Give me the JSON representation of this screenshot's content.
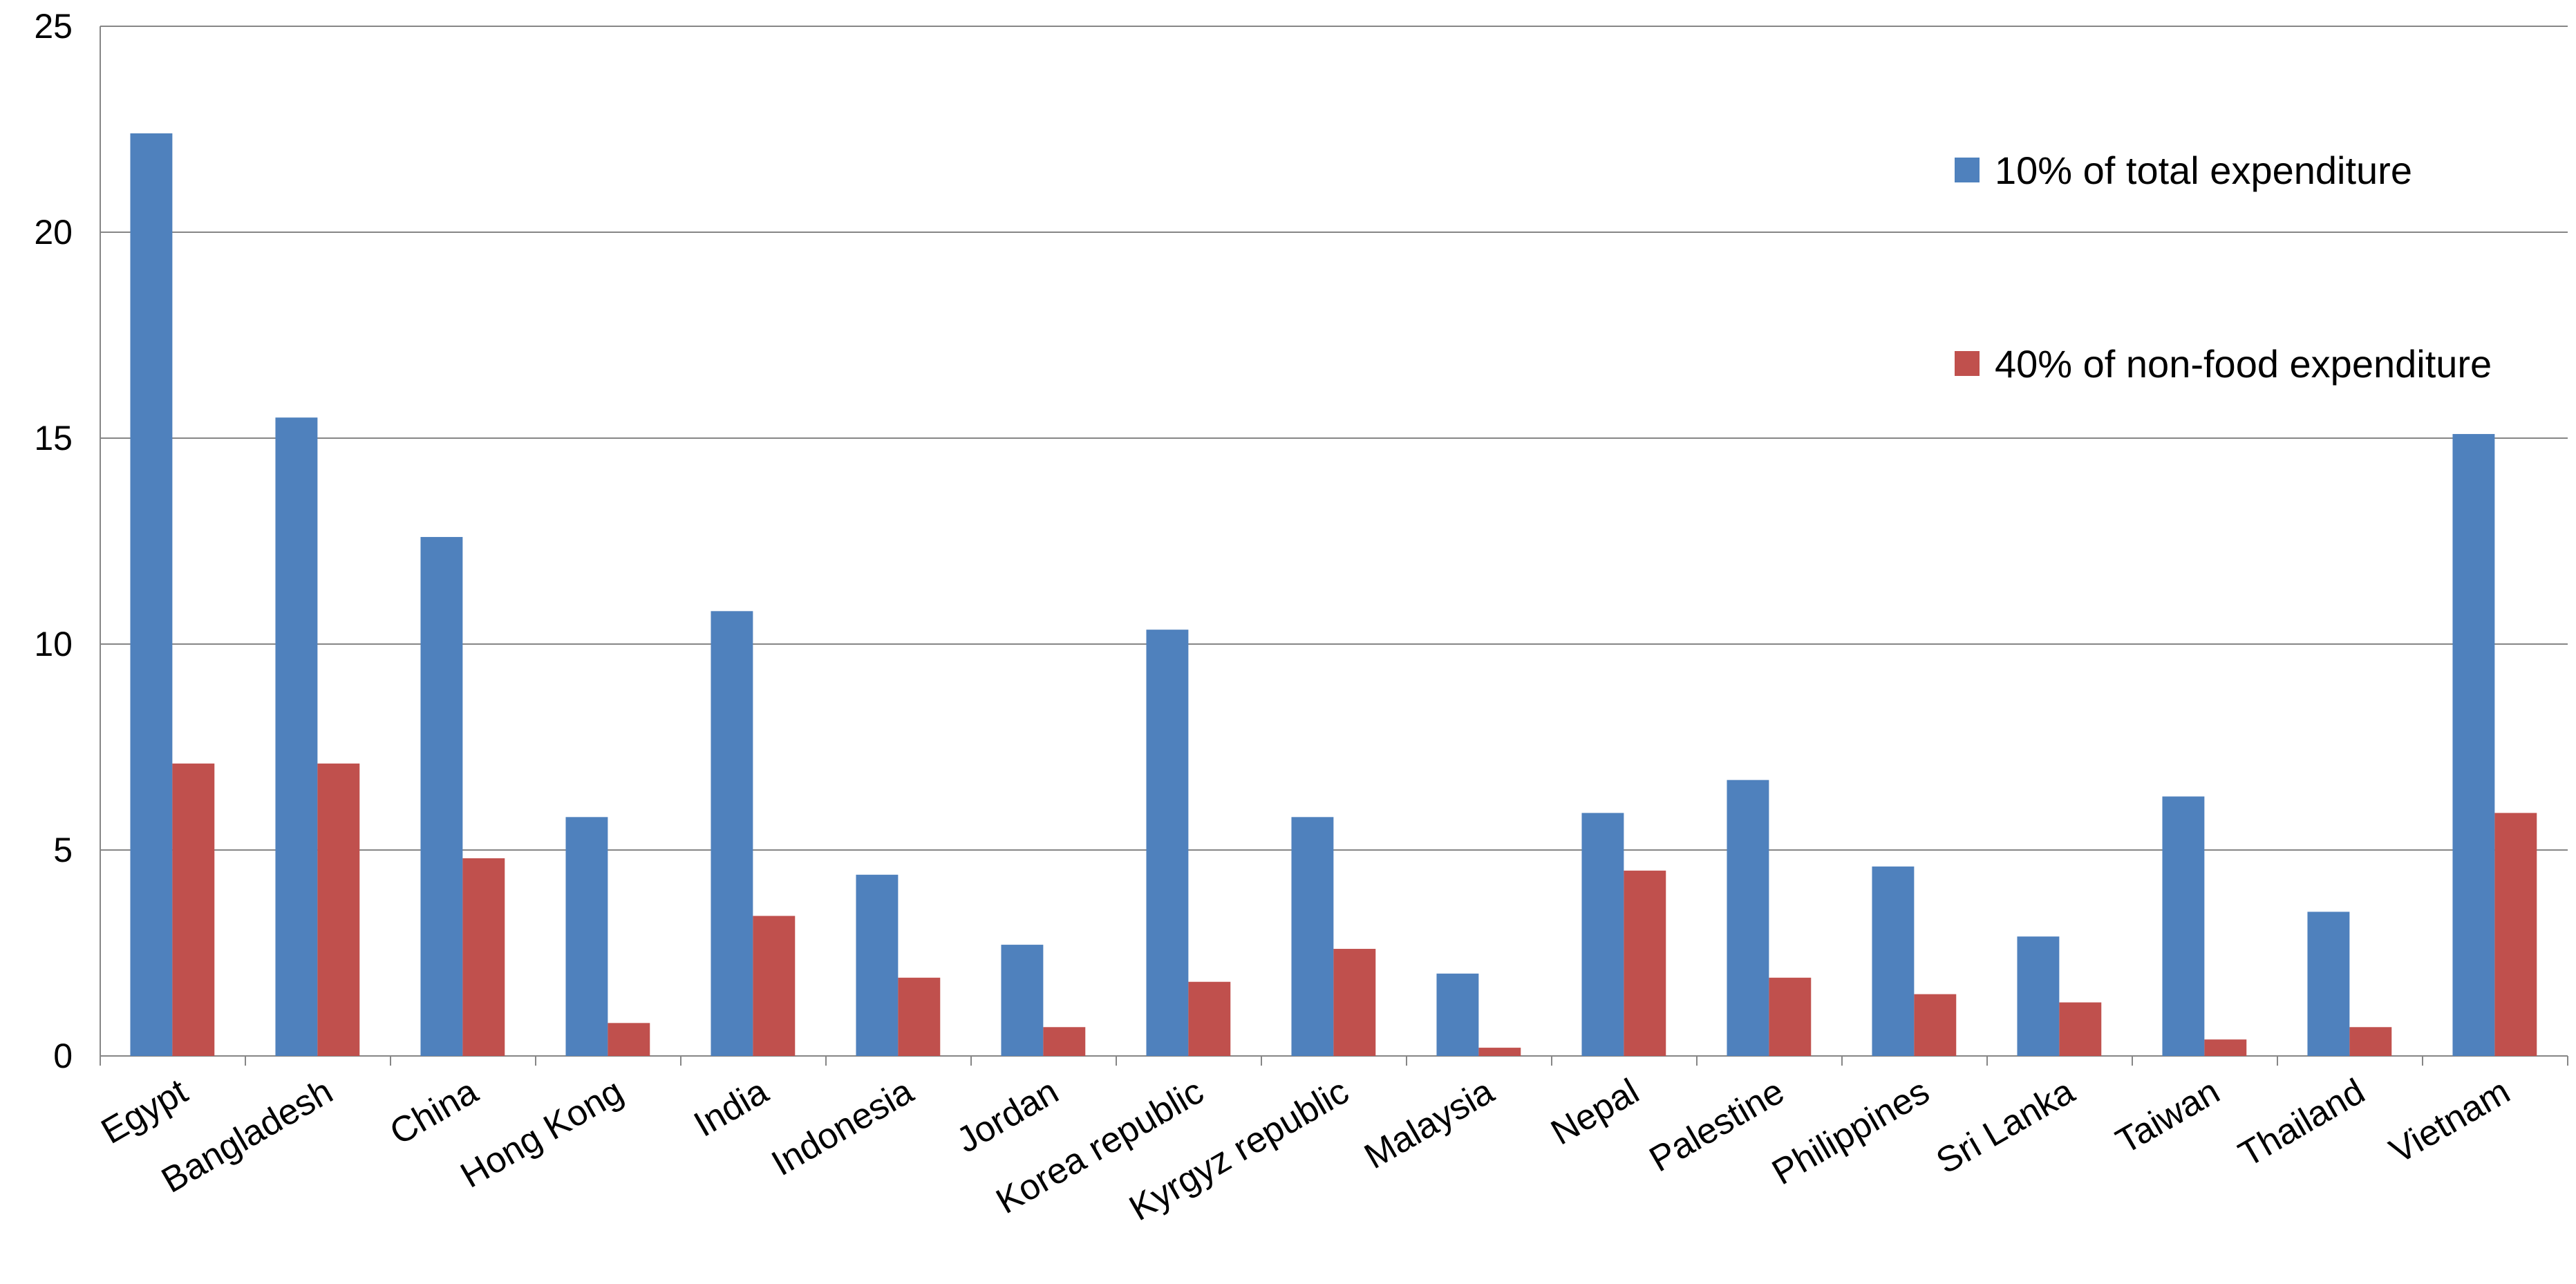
{
  "chart_data": {
    "type": "bar",
    "title": "",
    "xlabel": "",
    "ylabel": "",
    "ylim": [
      0,
      25
    ],
    "yticks": [
      0,
      5,
      10,
      15,
      20,
      25
    ],
    "grid": true,
    "legend_position": "top-right",
    "categories": [
      "Egypt",
      "Bangladesh",
      "China",
      "Hong Kong",
      "India",
      "Indonesia",
      "Jordan",
      "Korea republic",
      "Kyrgyz republic",
      "Malaysia",
      "Nepal",
      "Palestine",
      "Philippines",
      "Sri Lanka",
      "Taiwan",
      "Thailand",
      "Vietnam"
    ],
    "series": [
      {
        "name": "10% of total expenditure",
        "color": "#4F81BD",
        "values": [
          22.4,
          15.5,
          12.6,
          5.8,
          10.8,
          4.4,
          2.7,
          10.35,
          5.8,
          2.0,
          5.9,
          6.7,
          4.6,
          2.9,
          6.3,
          3.5,
          15.1
        ]
      },
      {
        "name": "40% of non-food expenditure",
        "color": "#C0504D",
        "values": [
          7.1,
          7.1,
          4.8,
          0.8,
          3.4,
          1.9,
          0.7,
          1.8,
          2.6,
          0.2,
          4.5,
          1.9,
          1.5,
          1.3,
          0.4,
          0.7,
          5.9
        ]
      }
    ]
  }
}
